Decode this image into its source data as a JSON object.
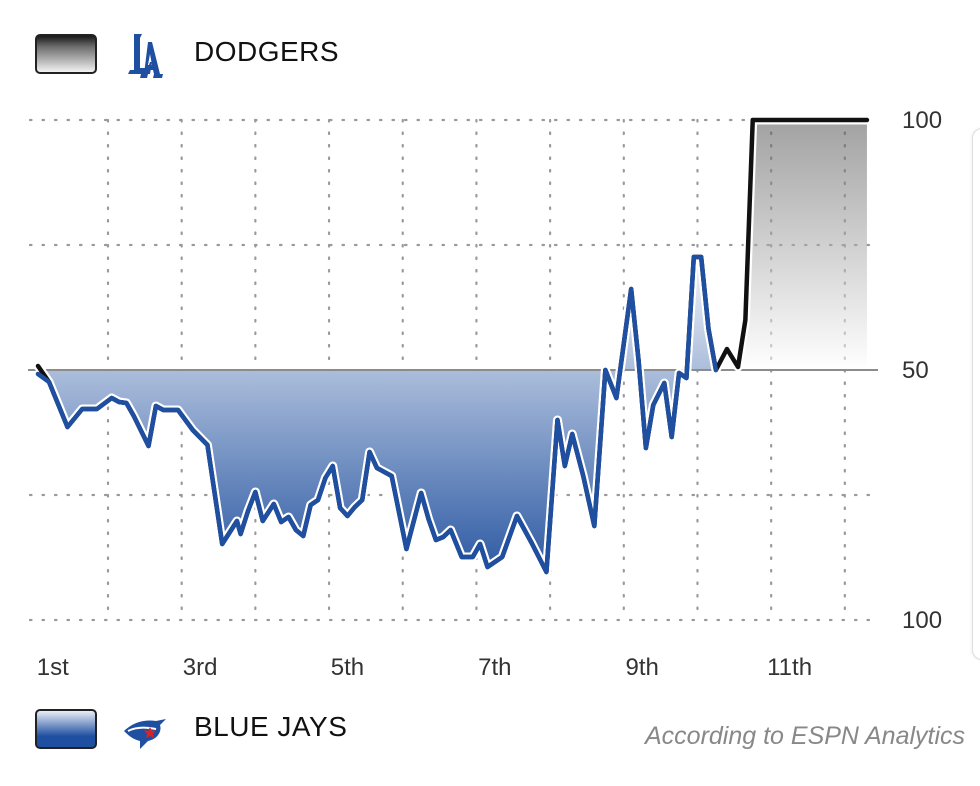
{
  "legend": {
    "top_team": "DODGERS",
    "top_logo": "la-dodgers-logo",
    "bottom_team": "BLUE JAYS",
    "bottom_logo": "blue-jays-logo"
  },
  "footnote": "According to ESPN Analytics",
  "colors": {
    "dodgers": "#111111",
    "blue_jays": "#1f4fa0",
    "grid": "#9a9a9a",
    "midline": "#8c8c8c"
  },
  "chart_data": {
    "type": "line",
    "title": "",
    "ylabel": "",
    "xlabel": "",
    "y_tick_labels": [
      {
        "value": 100,
        "label": "100"
      },
      {
        "value": 50,
        "label": "50"
      },
      {
        "value": 0,
        "label": "100"
      }
    ],
    "ylim": [
      0,
      100
    ],
    "xlim": [
      0,
      11.4
    ],
    "x_tick_labels": [
      {
        "value": 0.2,
        "label": "1st"
      },
      {
        "value": 2.2,
        "label": "3rd"
      },
      {
        "value": 4.2,
        "label": "5th"
      },
      {
        "value": 6.2,
        "label": "7th"
      },
      {
        "value": 8.2,
        "label": "9th"
      },
      {
        "value": 10.2,
        "label": "11th"
      }
    ],
    "grid": true,
    "series": [
      {
        "name": "Dodgers win probability",
        "x": [
          0,
          0.15,
          0.4,
          0.6,
          0.8,
          1.0,
          1.1,
          1.2,
          1.3,
          1.5,
          1.6,
          1.7,
          1.9,
          2.1,
          2.3,
          2.5,
          2.7,
          2.75,
          2.85,
          2.95,
          3.05,
          3.2,
          3.3,
          3.4,
          3.5,
          3.6,
          3.7,
          3.8,
          3.9,
          4.0,
          4.1,
          4.2,
          4.3,
          4.4,
          4.5,
          4.6,
          4.8,
          5.0,
          5.2,
          5.3,
          5.4,
          5.5,
          5.6,
          5.75,
          5.9,
          6.0,
          6.1,
          6.3,
          6.5,
          6.7,
          6.9,
          7.05,
          7.15,
          7.25,
          7.4,
          7.55,
          7.7,
          7.85,
          8.05,
          8.15,
          8.25,
          8.35,
          8.5,
          8.6,
          8.7,
          8.8,
          8.9,
          9.0,
          9.1,
          9.2,
          9.35,
          9.5,
          9.6,
          9.7,
          9.8,
          9.9,
          10.0,
          10.15,
          10.3,
          10.35,
          10.4,
          10.45,
          10.55,
          10.7,
          10.8,
          10.9,
          11.0,
          11.1,
          11.15,
          11.25
        ],
        "values": [
          50.8,
          47.6,
          38.6,
          42.2,
          42.2,
          44.4,
          43.6,
          43.4,
          40.8,
          34.8,
          42.8,
          42.0,
          42.0,
          38.0,
          35.0,
          15.2,
          19.8,
          17.2,
          21.8,
          25.6,
          19.8,
          23.2,
          19.6,
          20.6,
          18.0,
          16.8,
          23.0,
          24.0,
          28.4,
          30.8,
          22.4,
          20.8,
          22.6,
          24.0,
          33.6,
          30.4,
          28.8,
          14.2,
          25.4,
          20.2,
          16.0,
          16.6,
          18.0,
          12.6,
          12.6,
          15.2,
          10.6,
          12.6,
          20.8,
          15.4,
          9.6,
          40.0,
          30.8,
          37.2,
          28.8,
          18.8,
          50.0,
          44.4,
          66.2,
          52.0,
          34.4,
          43.0,
          47.4,
          36.6,
          49.4,
          48.4,
          72.6,
          72.6,
          58.2,
          50.0,
          54.2,
          50.6,
          60.0,
          100,
          100,
          100,
          100,
          100,
          100,
          100,
          100,
          100,
          100,
          100,
          100,
          100,
          100,
          100,
          100,
          100
        ]
      },
      {
        "name": "Blue Jays win probability",
        "x": [
          0,
          0.15,
          0.4,
          0.6,
          0.8,
          1.0,
          1.1,
          1.2,
          1.3,
          1.5,
          1.6,
          1.7,
          1.9,
          2.1,
          2.3,
          2.5,
          2.7,
          2.75,
          2.85,
          2.95,
          3.05,
          3.2,
          3.3,
          3.4,
          3.5,
          3.6,
          3.7,
          3.8,
          3.9,
          4.0,
          4.1,
          4.2,
          4.3,
          4.4,
          4.5,
          4.6,
          4.8,
          5.0,
          5.2,
          5.3,
          5.4,
          5.5,
          5.6,
          5.75,
          5.9,
          6.0,
          6.1,
          6.3,
          6.5,
          6.7,
          6.9,
          7.05,
          7.15,
          7.25,
          7.4,
          7.55,
          7.7,
          7.85,
          8.05,
          8.15,
          8.25,
          8.35,
          8.5,
          8.6,
          8.7,
          8.8,
          8.9,
          9.0,
          9.1,
          9.2
        ],
        "values": [
          49.2,
          47.6,
          38.6,
          42.2,
          42.2,
          44.4,
          43.6,
          43.4,
          40.8,
          34.8,
          42.8,
          42.0,
          42.0,
          38.0,
          35.0,
          15.2,
          19.8,
          17.2,
          21.8,
          25.6,
          19.8,
          23.2,
          19.6,
          20.6,
          18.0,
          16.8,
          23.0,
          24.0,
          28.4,
          30.8,
          22.4,
          20.8,
          22.6,
          24.0,
          33.6,
          30.4,
          28.8,
          14.2,
          25.4,
          20.2,
          16.0,
          16.6,
          18.0,
          12.6,
          12.6,
          15.2,
          10.6,
          12.6,
          20.8,
          15.4,
          9.6,
          40.0,
          30.8,
          37.2,
          28.8,
          18.8,
          50.0,
          44.4,
          66.2,
          52.0,
          34.4,
          43.0,
          47.4,
          36.6,
          49.4,
          48.4,
          72.6,
          72.6,
          58.2,
          50.0
        ]
      }
    ]
  }
}
